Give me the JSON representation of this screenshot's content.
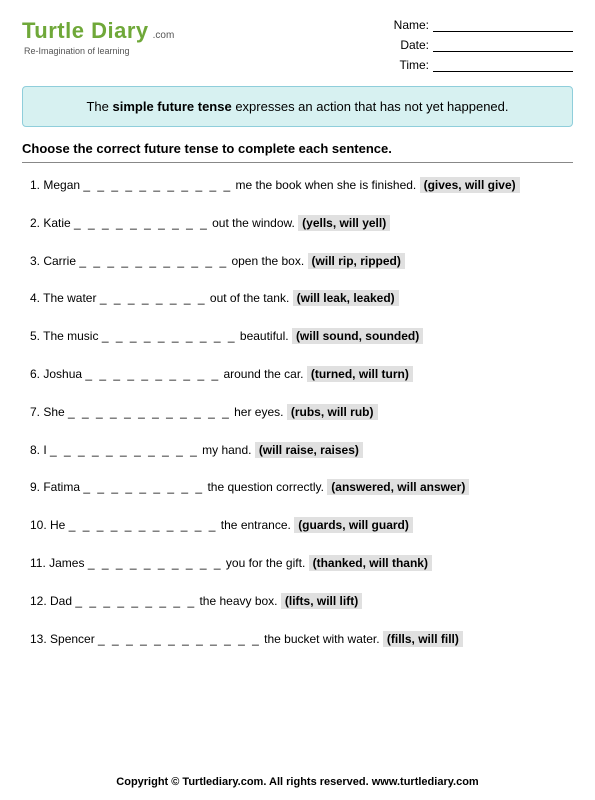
{
  "logo": {
    "brand": "Turtle Diary",
    "dotcom": ".com",
    "tagline": "Re-Imagination of learning"
  },
  "meta": {
    "name_label": "Name:",
    "date_label": "Date:",
    "time_label": "Time:"
  },
  "info": {
    "pre": "The ",
    "bold": "simple future tense",
    "post": " expresses an action that has not yet happened."
  },
  "instruction": "Choose the correct future tense to complete each sentence.",
  "questions": [
    {
      "n": "1.",
      "pre": "Megan ",
      "blank": "_ _ _ _ _ _ _ _ _ _ _",
      "post": " me the book when she is finished.  ",
      "choices": "(gives, will give)"
    },
    {
      "n": "2.",
      "pre": "Katie ",
      "blank": "_ _ _ _ _ _ _ _ _ _",
      "post": " out the window.  ",
      "choices": "(yells, will yell)"
    },
    {
      "n": "3.",
      "pre": "Carrie ",
      "blank": "_ _ _ _ _ _ _ _ _ _ _",
      "post": " open the box.  ",
      "choices": "(will rip, ripped)"
    },
    {
      "n": "4.",
      "pre": "The water ",
      "blank": "_ _ _ _ _ _ _ _",
      "post": " out of the tank.  ",
      "choices": "(will leak, leaked)"
    },
    {
      "n": "5.",
      "pre": "The music ",
      "blank": "_ _ _ _ _ _ _ _ _ _",
      "post": " beautiful.  ",
      "choices": "(will sound, sounded)"
    },
    {
      "n": "6.",
      "pre": "Joshua ",
      "blank": "_ _ _ _ _ _ _ _ _ _",
      "post": " around the car.  ",
      "choices": "(turned, will turn)"
    },
    {
      "n": "7.",
      "pre": "She ",
      "blank": "_ _ _ _ _ _ _ _ _ _ _ _",
      "post": " her eyes.  ",
      "choices": "(rubs, will rub)"
    },
    {
      "n": "8.",
      "pre": "I ",
      "blank": "_ _ _ _ _ _ _ _ _ _ _",
      "post": " my hand.  ",
      "choices": "(will raise, raises)"
    },
    {
      "n": "9.",
      "pre": "Fatima ",
      "blank": "_ _ _ _ _ _ _ _ _",
      "post": " the question correctly.  ",
      "choices": "(answered, will answer)"
    },
    {
      "n": "10.",
      "pre": "He ",
      "blank": "_ _ _ _ _ _ _ _ _ _ _",
      "post": " the entrance.  ",
      "choices": "(guards, will guard)"
    },
    {
      "n": "11.",
      "pre": "James ",
      "blank": "_ _ _ _ _ _ _ _ _ _",
      "post": " you for the gift.  ",
      "choices": "(thanked, will thank)"
    },
    {
      "n": "12.",
      "pre": "Dad ",
      "blank": "_ _ _ _ _ _ _ _ _",
      "post": " the heavy box.  ",
      "choices": "(lifts, will lift)"
    },
    {
      "n": "13.",
      "pre": "Spencer ",
      "blank": "_ _ _ _ _ _ _ _ _ _ _ _",
      "post": " the bucket with water.  ",
      "choices": "(fills, will fill)"
    }
  ],
  "footer": "Copyright © Turtlediary.com. All rights reserved. www.turtlediary.com"
}
